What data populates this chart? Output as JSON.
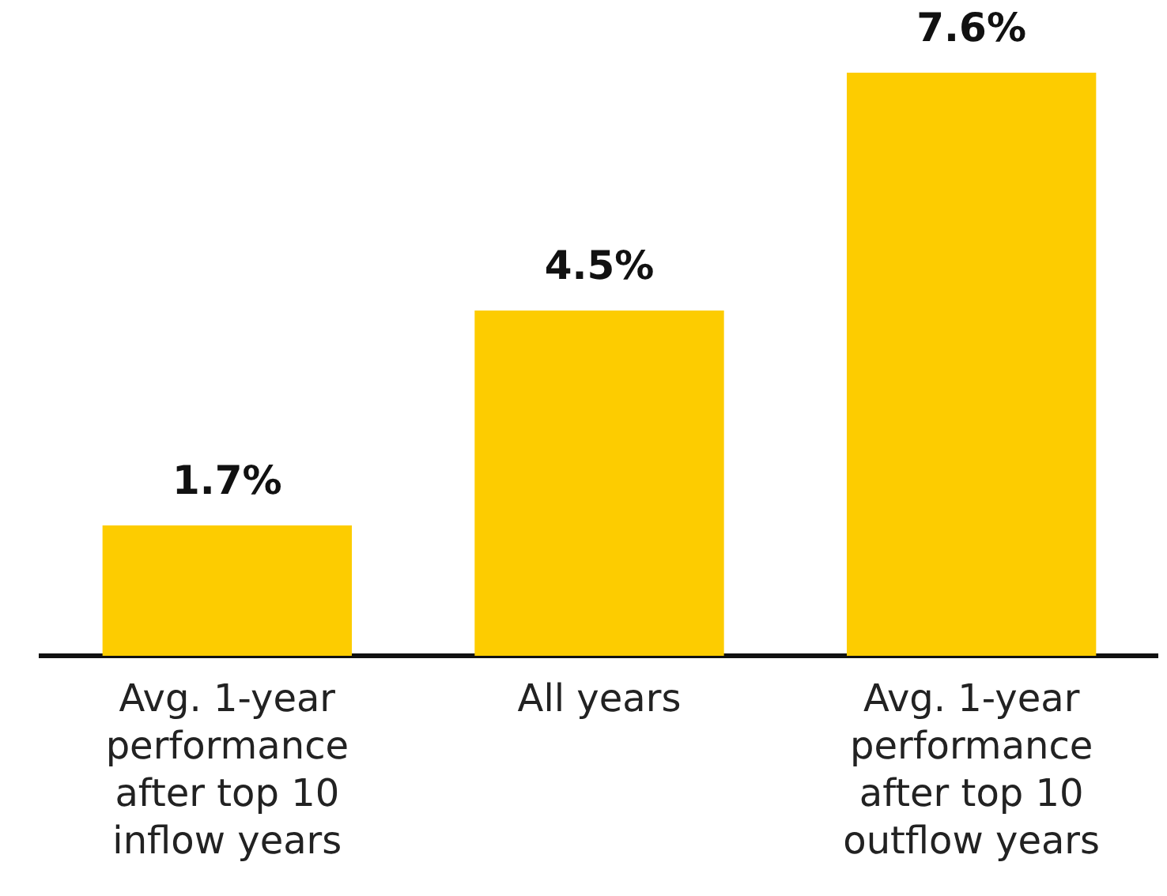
{
  "chart_data": {
    "type": "bar",
    "categories": [
      "Avg. 1-year performance after top 10 inflow years",
      "All years",
      "Avg. 1-year performance after top 10 outflow years"
    ],
    "values": [
      1.7,
      4.5,
      7.6
    ],
    "color": "#fdcc00",
    "value_labels": [
      "1.7%",
      "4.5%",
      "7.6%"
    ],
    "grid": false,
    "legend": false
  }
}
